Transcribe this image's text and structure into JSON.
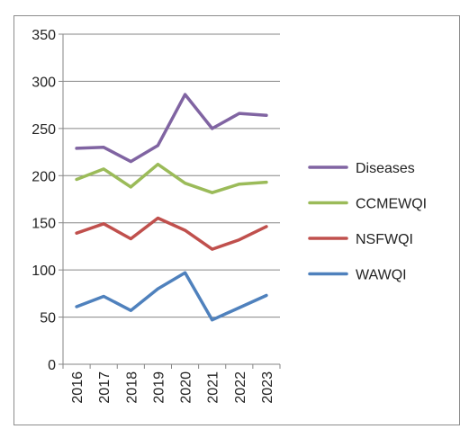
{
  "chart_data": {
    "type": "line",
    "title": "",
    "xlabel": "",
    "ylabel": "",
    "categories": [
      "2016",
      "2017",
      "2018",
      "2019",
      "2020",
      "2021",
      "2022",
      "2023"
    ],
    "ylim": [
      0,
      350
    ],
    "yticks": [
      0,
      50,
      100,
      150,
      200,
      250,
      300,
      350
    ],
    "grid": true,
    "legend_position": "right",
    "series": [
      {
        "name": "Diseases",
        "color": "#8064a2",
        "values": [
          229,
          230,
          215,
          232,
          286,
          250,
          266,
          264
        ]
      },
      {
        "name": "CCMEWQI",
        "color": "#9bbb59",
        "values": [
          196,
          207,
          188,
          212,
          192,
          182,
          191,
          193
        ]
      },
      {
        "name": "NSFWQI",
        "color": "#c0504d",
        "values": [
          139,
          149,
          133,
          155,
          142,
          122,
          132,
          146
        ]
      },
      {
        "name": "WAWQI",
        "color": "#4f81bd",
        "values": [
          61,
          72,
          57,
          80,
          97,
          47,
          60,
          73
        ]
      }
    ]
  }
}
